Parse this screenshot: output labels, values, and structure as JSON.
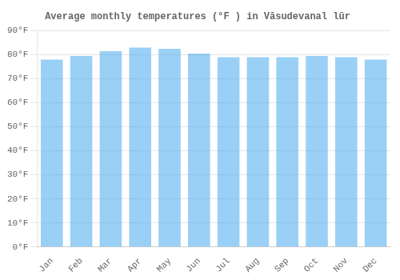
{
  "chart_data": {
    "type": "bar",
    "title": "Average monthly temperatures (°F ) in Vāsudevanal lūr",
    "categories": [
      "Jan",
      "Feb",
      "Mar",
      "Apr",
      "May",
      "Jun",
      "Jul",
      "Aug",
      "Sep",
      "Oct",
      "Nov",
      "Dec"
    ],
    "values": [
      78,
      79.5,
      81.5,
      83,
      82.5,
      80.5,
      79,
      79,
      79,
      79.5,
      79,
      78
    ],
    "ylim": [
      0,
      90
    ],
    "yticks": [
      {
        "value": 0,
        "label": "0°F"
      },
      {
        "value": 10,
        "label": "10°F"
      },
      {
        "value": 20,
        "label": "20°F"
      },
      {
        "value": 30,
        "label": "30°F"
      },
      {
        "value": 40,
        "label": "40°F"
      },
      {
        "value": 50,
        "label": "50°F"
      },
      {
        "value": 60,
        "label": "60°F"
      },
      {
        "value": 70,
        "label": "70°F"
      },
      {
        "value": 80,
        "label": "80°F"
      },
      {
        "value": 90,
        "label": "90°F"
      }
    ],
    "grid": true
  }
}
